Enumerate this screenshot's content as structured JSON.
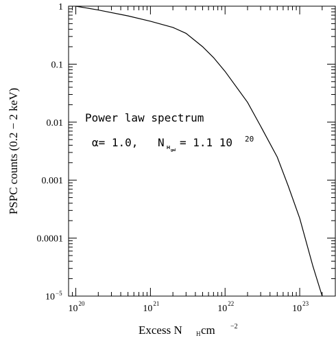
{
  "chart_data": {
    "type": "line",
    "xscale": "log",
    "yscale": "log",
    "xlim": [
      8e+19,
      3e+23
    ],
    "ylim": [
      1e-05,
      1
    ],
    "grid": false,
    "xlabel": {
      "main": "Excess N",
      "sub": "H",
      "unit": " cm",
      "exp": "−2"
    },
    "ylabel": "PSPC counts (0.2 − 2 keV)",
    "x_ticks": [
      {
        "value": 1e+20,
        "base": "10",
        "exp": "20"
      },
      {
        "value": 1e+21,
        "base": "10",
        "exp": "21"
      },
      {
        "value": 1e+22,
        "base": "10",
        "exp": "22"
      },
      {
        "value": 1e+23,
        "base": "10",
        "exp": "23"
      }
    ],
    "y_ticks": [
      {
        "value": 1,
        "label": "1"
      },
      {
        "value": 0.1,
        "label": "0.1"
      },
      {
        "value": 0.01,
        "label": "0.01"
      },
      {
        "value": 0.001,
        "label": "0.001"
      },
      {
        "value": 0.0001,
        "label": "0.0001"
      },
      {
        "value": 1e-05,
        "label": "10",
        "exp": "−5"
      }
    ],
    "annotations": {
      "line1": "Power law spectrum",
      "alpha_label": "α= 1.0,",
      "nh_label": "N",
      "nh_sub1": "H",
      "nh_sub2": "gal",
      "nh_value": " = 1.1 10",
      "nh_exp": "20"
    },
    "series": [
      {
        "x": [
          1e+20,
          2e+20,
          5e+20,
          1e+21,
          2e+21,
          3e+21,
          5e+21,
          7e+21,
          1e+22,
          2e+22,
          3e+22,
          5e+22,
          7e+22,
          1e+23,
          1.5e+23,
          2e+23
        ],
        "y": [
          1.0,
          0.86,
          0.68,
          0.55,
          0.43,
          0.34,
          0.2,
          0.13,
          0.075,
          0.022,
          0.0085,
          0.0025,
          0.0008,
          0.00022,
          3.3e-05,
          1e-05
        ]
      }
    ]
  }
}
